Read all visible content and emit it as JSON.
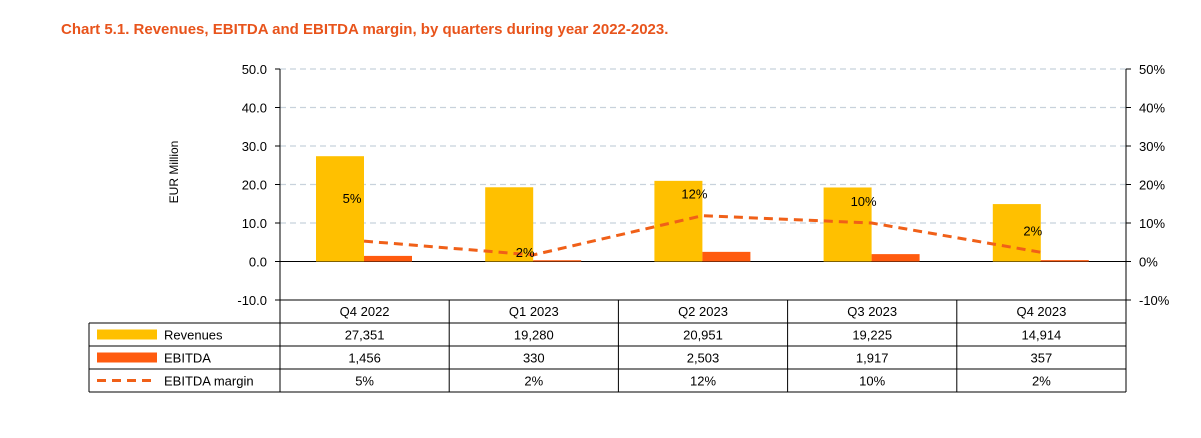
{
  "chart_data": {
    "type": "bar",
    "title": "Chart 5.1. Revenues, EBITDA and EBITDA margin, by quarters during year 2022-2023.",
    "ylabel": "EUR Million",
    "ylim": [
      -10,
      50
    ],
    "y2lim": [
      -10,
      50
    ],
    "yticks": [
      "50.0",
      "40.0",
      "30.0",
      "20.0",
      "10.0",
      "0.0",
      "-10.0"
    ],
    "y2ticks": [
      "50%",
      "40%",
      "30%",
      "20%",
      "10%",
      "0%",
      "-10%"
    ],
    "grid": true,
    "categories": [
      "Q4 2022",
      "Q1 2023",
      "Q2 2023",
      "Q3 2023",
      "Q4 2023"
    ],
    "series": [
      {
        "name": "Revenues",
        "type": "bar",
        "axis": "left",
        "color": "#ffc000",
        "values": [
          27.351,
          19.28,
          20.951,
          19.225,
          14.914
        ],
        "table_values": [
          "27,351",
          "19,280",
          "20,951",
          "19,225",
          "14,914"
        ]
      },
      {
        "name": "EBITDA",
        "type": "bar",
        "axis": "left",
        "color": "#ff5b0f",
        "values": [
          1.456,
          0.33,
          2.503,
          1.917,
          0.357
        ],
        "table_values": [
          "1,456",
          "330",
          "2,503",
          "1,917",
          "357"
        ]
      },
      {
        "name": "EBITDA margin",
        "type": "line",
        "axis": "right",
        "style": "dashed",
        "color": "#f06018",
        "values": [
          5.3,
          1.7,
          11.9,
          10.0,
          2.4
        ],
        "data_labels": [
          "5%",
          "2%",
          "12%",
          "10%",
          "2%"
        ],
        "table_values": [
          "5%",
          "2%",
          "12%",
          "10%",
          "2%"
        ]
      }
    ]
  }
}
